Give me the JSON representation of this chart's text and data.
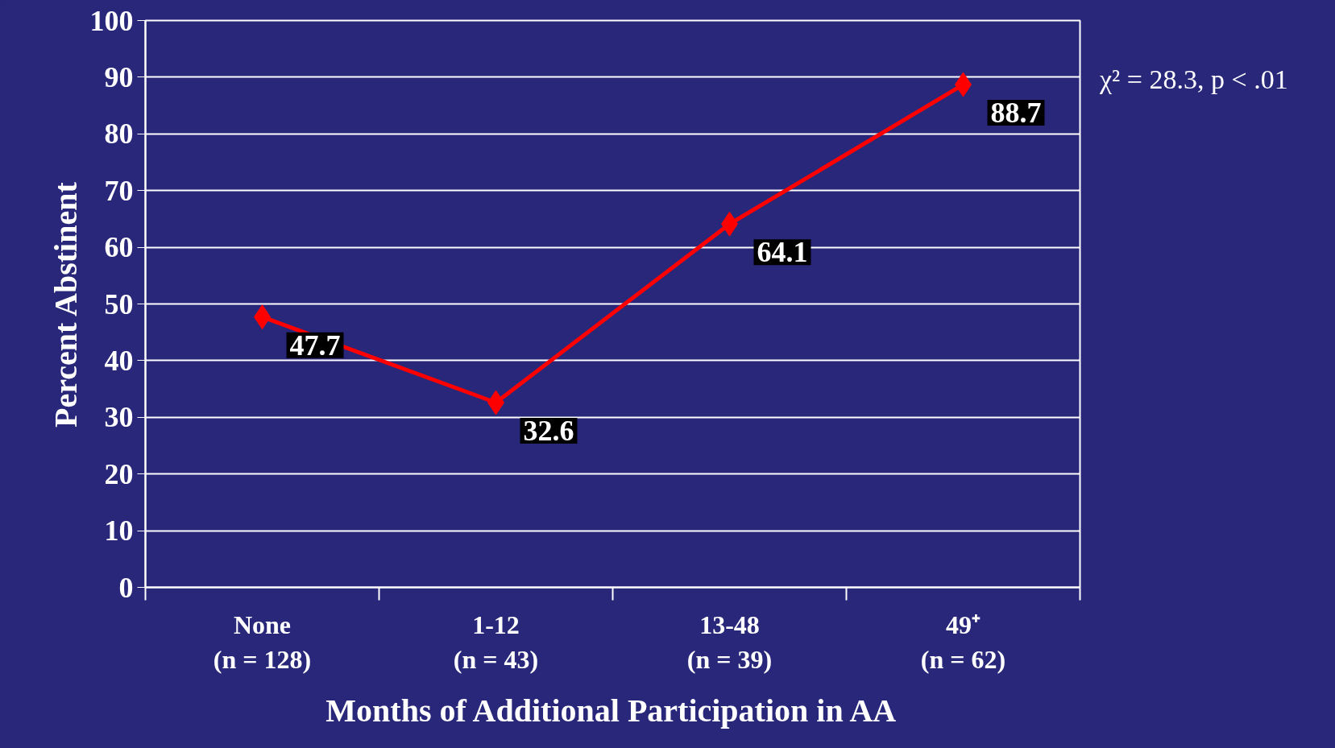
{
  "chart_data": {
    "type": "line",
    "xlabel": "Months of Additional Participation in AA",
    "ylabel": "Percent Abstinent",
    "categories": [
      "None\n(n = 128)",
      "1-12\n(n = 43)",
      "13-48\n(n = 39)",
      "49⁺\n(n = 62)"
    ],
    "series": [
      {
        "color": "#ff0000",
        "values": [
          47.7,
          32.6,
          64.1,
          88.7
        ]
      }
    ],
    "ylim": [
      0,
      100
    ],
    "yticks": [
      0,
      10,
      20,
      30,
      40,
      50,
      60,
      70,
      80,
      90,
      100
    ],
    "grid": "y",
    "marker": "diamond",
    "line_style": "solid",
    "data_labels": true,
    "annotations": [
      "χ² = 28.3, p < .01"
    ]
  }
}
